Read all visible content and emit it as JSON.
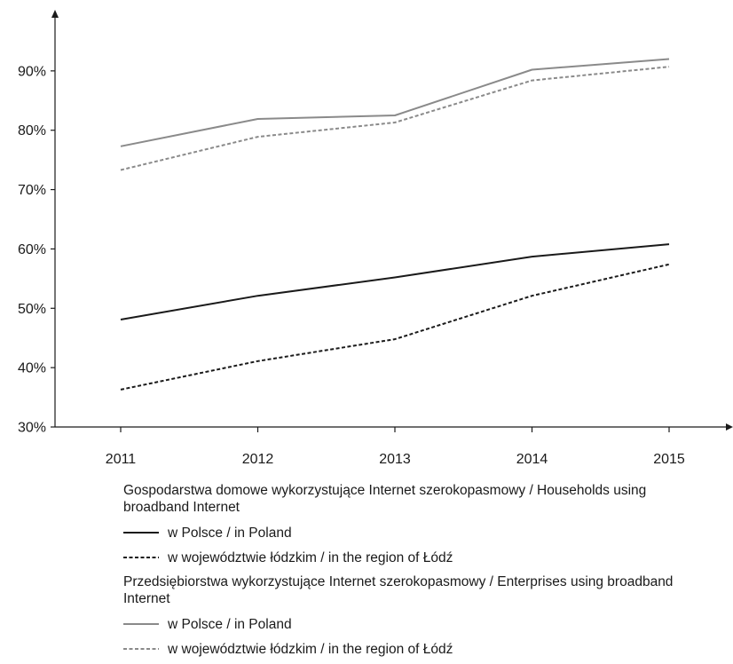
{
  "chart_data": {
    "type": "line",
    "x": [
      "2011",
      "2012",
      "2013",
      "2014",
      "2015"
    ],
    "ylim": [
      30,
      100
    ],
    "yticks": [
      30,
      40,
      50,
      60,
      70,
      80,
      90
    ],
    "ytick_labels": [
      "30%",
      "40%",
      "50%",
      "60%",
      "70%",
      "80%",
      "90%"
    ],
    "grid": false,
    "series": [
      {
        "group": "households",
        "name": "w Polsce / in Poland",
        "values": [
          48.1,
          52.1,
          55.2,
          58.7,
          60.8
        ],
        "color": "#1a1a1a",
        "dashed": false
      },
      {
        "group": "households",
        "name": "w województwie łódzkim / in the region of Łódź",
        "values": [
          36.3,
          41.1,
          44.8,
          52.1,
          57.4
        ],
        "color": "#1a1a1a",
        "dashed": true
      },
      {
        "group": "enterprises",
        "name": "w Polsce / in Poland",
        "values": [
          77.3,
          81.9,
          82.5,
          90.2,
          92.0
        ],
        "color": "#8a8a8a",
        "dashed": false
      },
      {
        "group": "enterprises",
        "name": "w województwie łódzkim / in the region of Łódź",
        "values": [
          73.3,
          78.9,
          81.3,
          88.4,
          90.7
        ],
        "color": "#8a8a8a",
        "dashed": true
      }
    ],
    "legend": {
      "placement": "bottom",
      "households_title": "Gospodarstwa domowe wykorzystujące Internet szerokopasmowy / Households using broadband Internet",
      "enterprises_title": "Przedsiębiorstwa wykorzystujące Internet szerokopasmowy / Enterprises using broadband Internet"
    }
  }
}
